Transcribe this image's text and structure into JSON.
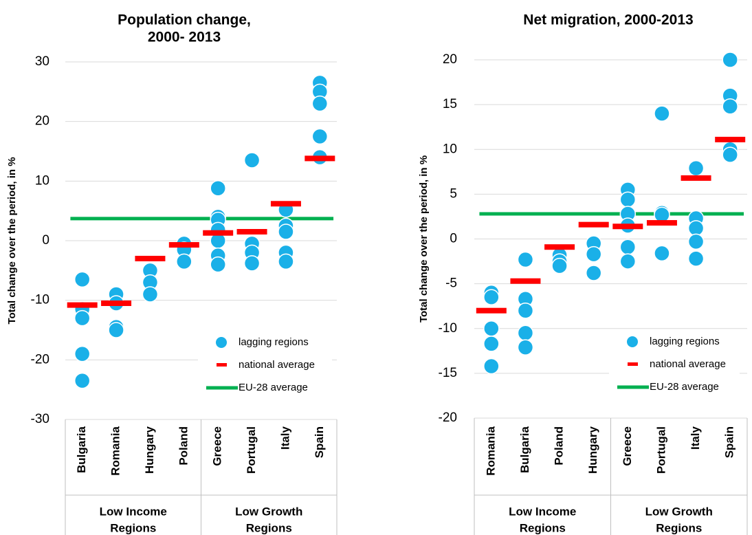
{
  "chart_data": [
    {
      "type": "strip",
      "title": [
        "Population change,",
        "2000- 2013"
      ],
      "y_label": "Total change over the period, in %",
      "categories": [
        "Bulgaria",
        "Romania",
        "Hungary",
        "Poland",
        "Greece",
        "Portugal",
        "Italy",
        "Spain"
      ],
      "category_groups": [
        [
          "Low Income",
          "Regions"
        ],
        null,
        null,
        null,
        [
          "Low Growth",
          "Regions"
        ],
        null,
        null,
        null
      ],
      "series": [
        {
          "name": "lagging regions",
          "color": "#1ab0e8",
          "values": [
            [
              -6.5,
              -11.5,
              -13,
              -19,
              -23.5
            ],
            [
              -9,
              -10.5,
              -14.5,
              -15
            ],
            [
              -5,
              -7,
              -9
            ],
            [
              -0.5,
              -1.5,
              -3.5
            ],
            [
              8.8,
              4,
              3.5,
              1.8,
              0,
              -2.5,
              -4
            ],
            [
              13.5,
              -0.5,
              -2,
              -3.8
            ],
            [
              5.2,
              2.5,
              1.5,
              -2,
              -3.5
            ],
            [
              26.5,
              25,
              23,
              17.5,
              14
            ]
          ]
        },
        {
          "name": "national average",
          "color": "#ff0000",
          "values": [
            -10.8,
            -10.5,
            -3,
            -0.7,
            1.3,
            1.5,
            6.2,
            13.8
          ]
        }
      ],
      "reference_line": {
        "name": "EU-28 average",
        "color": "#00b050",
        "value": 3.7
      },
      "ylim": [
        -30,
        30
      ],
      "yticks": [
        -30,
        -20,
        -10,
        0,
        10,
        20,
        30
      ],
      "grid": true,
      "legend": "lower right"
    },
    {
      "type": "strip",
      "title": [
        "Net migration, 2000-2013"
      ],
      "y_label": "Total change over the period, in %",
      "categories": [
        "Romania",
        "Bulgaria",
        "Poland",
        "Hungary",
        "Greece",
        "Portugal",
        "Italy",
        "Spain"
      ],
      "category_groups": [
        [
          "Low Income",
          "Regions"
        ],
        null,
        null,
        null,
        [
          "Low Growth",
          "Regions"
        ],
        null,
        null,
        null
      ],
      "series": [
        {
          "name": "lagging regions",
          "color": "#1ab0e8",
          "values": [
            [
              -6,
              -6.5,
              -10,
              -11.7,
              -14.2
            ],
            [
              -2.3,
              -6.7,
              -8,
              -10.5,
              -12.1
            ],
            [
              -1.8,
              -2.5,
              -3
            ],
            [
              -0.5,
              -1.7,
              -3.8
            ],
            [
              5.5,
              4.4,
              2.8,
              1.5,
              -0.9,
              -2.5
            ],
            [
              14,
              2.9,
              2.7,
              -1.6
            ],
            [
              7.9,
              2.3,
              1.2,
              -0.3,
              -2.2
            ],
            [
              20,
              16,
              14.8,
              10,
              9.4
            ]
          ]
        },
        {
          "name": "national average",
          "color": "#ff0000",
          "values": [
            -8,
            -4.7,
            -0.9,
            1.6,
            1.4,
            1.8,
            6.8,
            11.1
          ]
        }
      ],
      "reference_line": {
        "name": "EU-28 average",
        "color": "#00b050",
        "value": 2.8
      },
      "ylim": [
        -20,
        20
      ],
      "yticks": [
        -20,
        -15,
        -10,
        -5,
        0,
        5,
        10,
        15,
        20
      ],
      "grid": true,
      "legend": "lower right"
    }
  ]
}
